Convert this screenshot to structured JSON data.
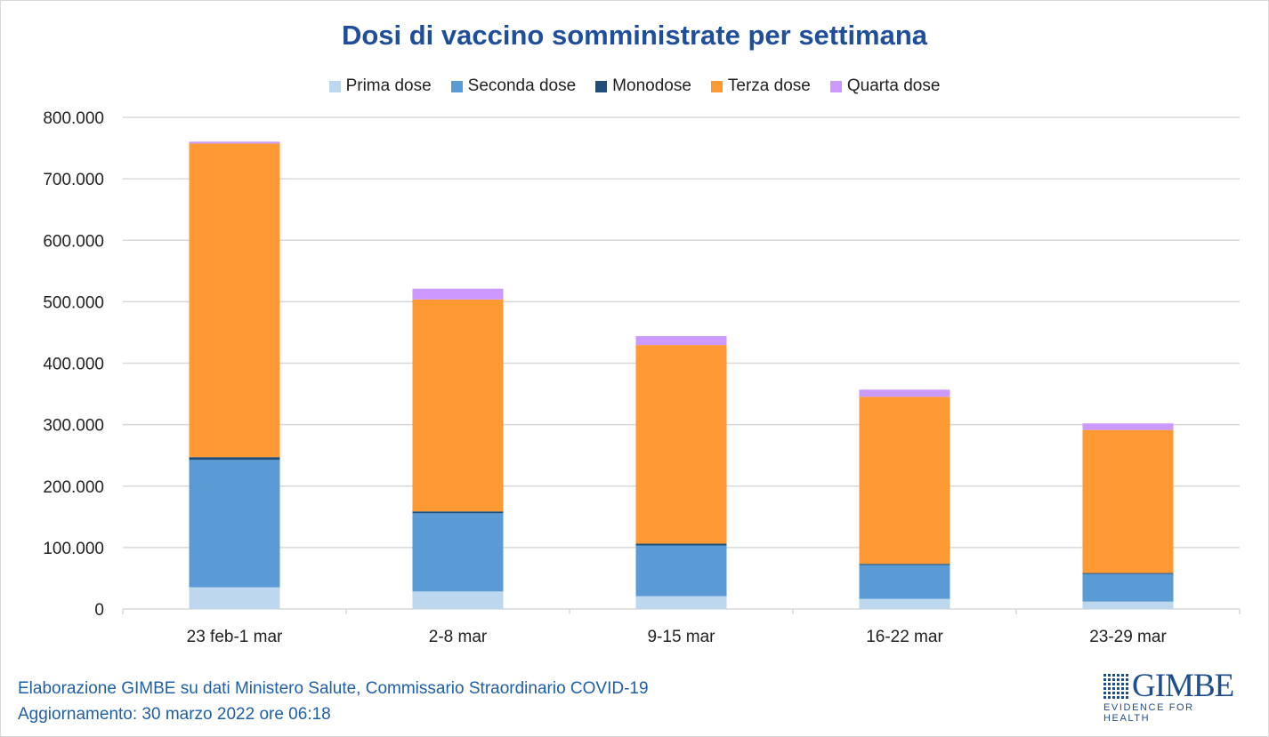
{
  "chart_data": {
    "type": "bar",
    "stacked": true,
    "title": "Dosi di vaccino somministrate per settimana",
    "categories": [
      "23 feb-1 mar",
      "2-8 mar",
      "9-15 mar",
      "16-22 mar",
      "23-29 mar"
    ],
    "series": [
      {
        "name": "Prima dose",
        "color": "#bdd7ee",
        "values": [
          35400,
          28500,
          20800,
          16400,
          12000
        ]
      },
      {
        "name": "Seconda dose",
        "color": "#5b9bd5",
        "values": [
          207200,
          127300,
          82600,
          55100,
          45000
        ]
      },
      {
        "name": "Monodose",
        "color": "#1f4e79",
        "values": [
          4500,
          3000,
          2900,
          1900,
          1500
        ]
      },
      {
        "name": "Terza dose",
        "color": "#ff9933",
        "values": [
          510300,
          344900,
          323200,
          271900,
          232800
        ]
      },
      {
        "name": "Quarta dose",
        "color": "#cc99ff",
        "values": [
          3000,
          17500,
          14500,
          11600,
          10700
        ]
      }
    ],
    "ylim": [
      0,
      800000
    ],
    "yticks": [
      "0",
      "100.000",
      "200.000",
      "300.000",
      "400.000",
      "500.000",
      "600.000",
      "700.000",
      "800.000"
    ],
    "grid": true,
    "legend": "top",
    "xlabel": "",
    "ylabel": ""
  },
  "footer": {
    "line1": "Elaborazione GIMBE su dati Ministero Salute, Commissario Straordinario COVID-19",
    "line2": "Aggiornamento: 30 marzo 2022 ore 06:18"
  },
  "logo": {
    "name": "GIMBE",
    "tagline": "EVIDENCE FOR HEALTH"
  }
}
